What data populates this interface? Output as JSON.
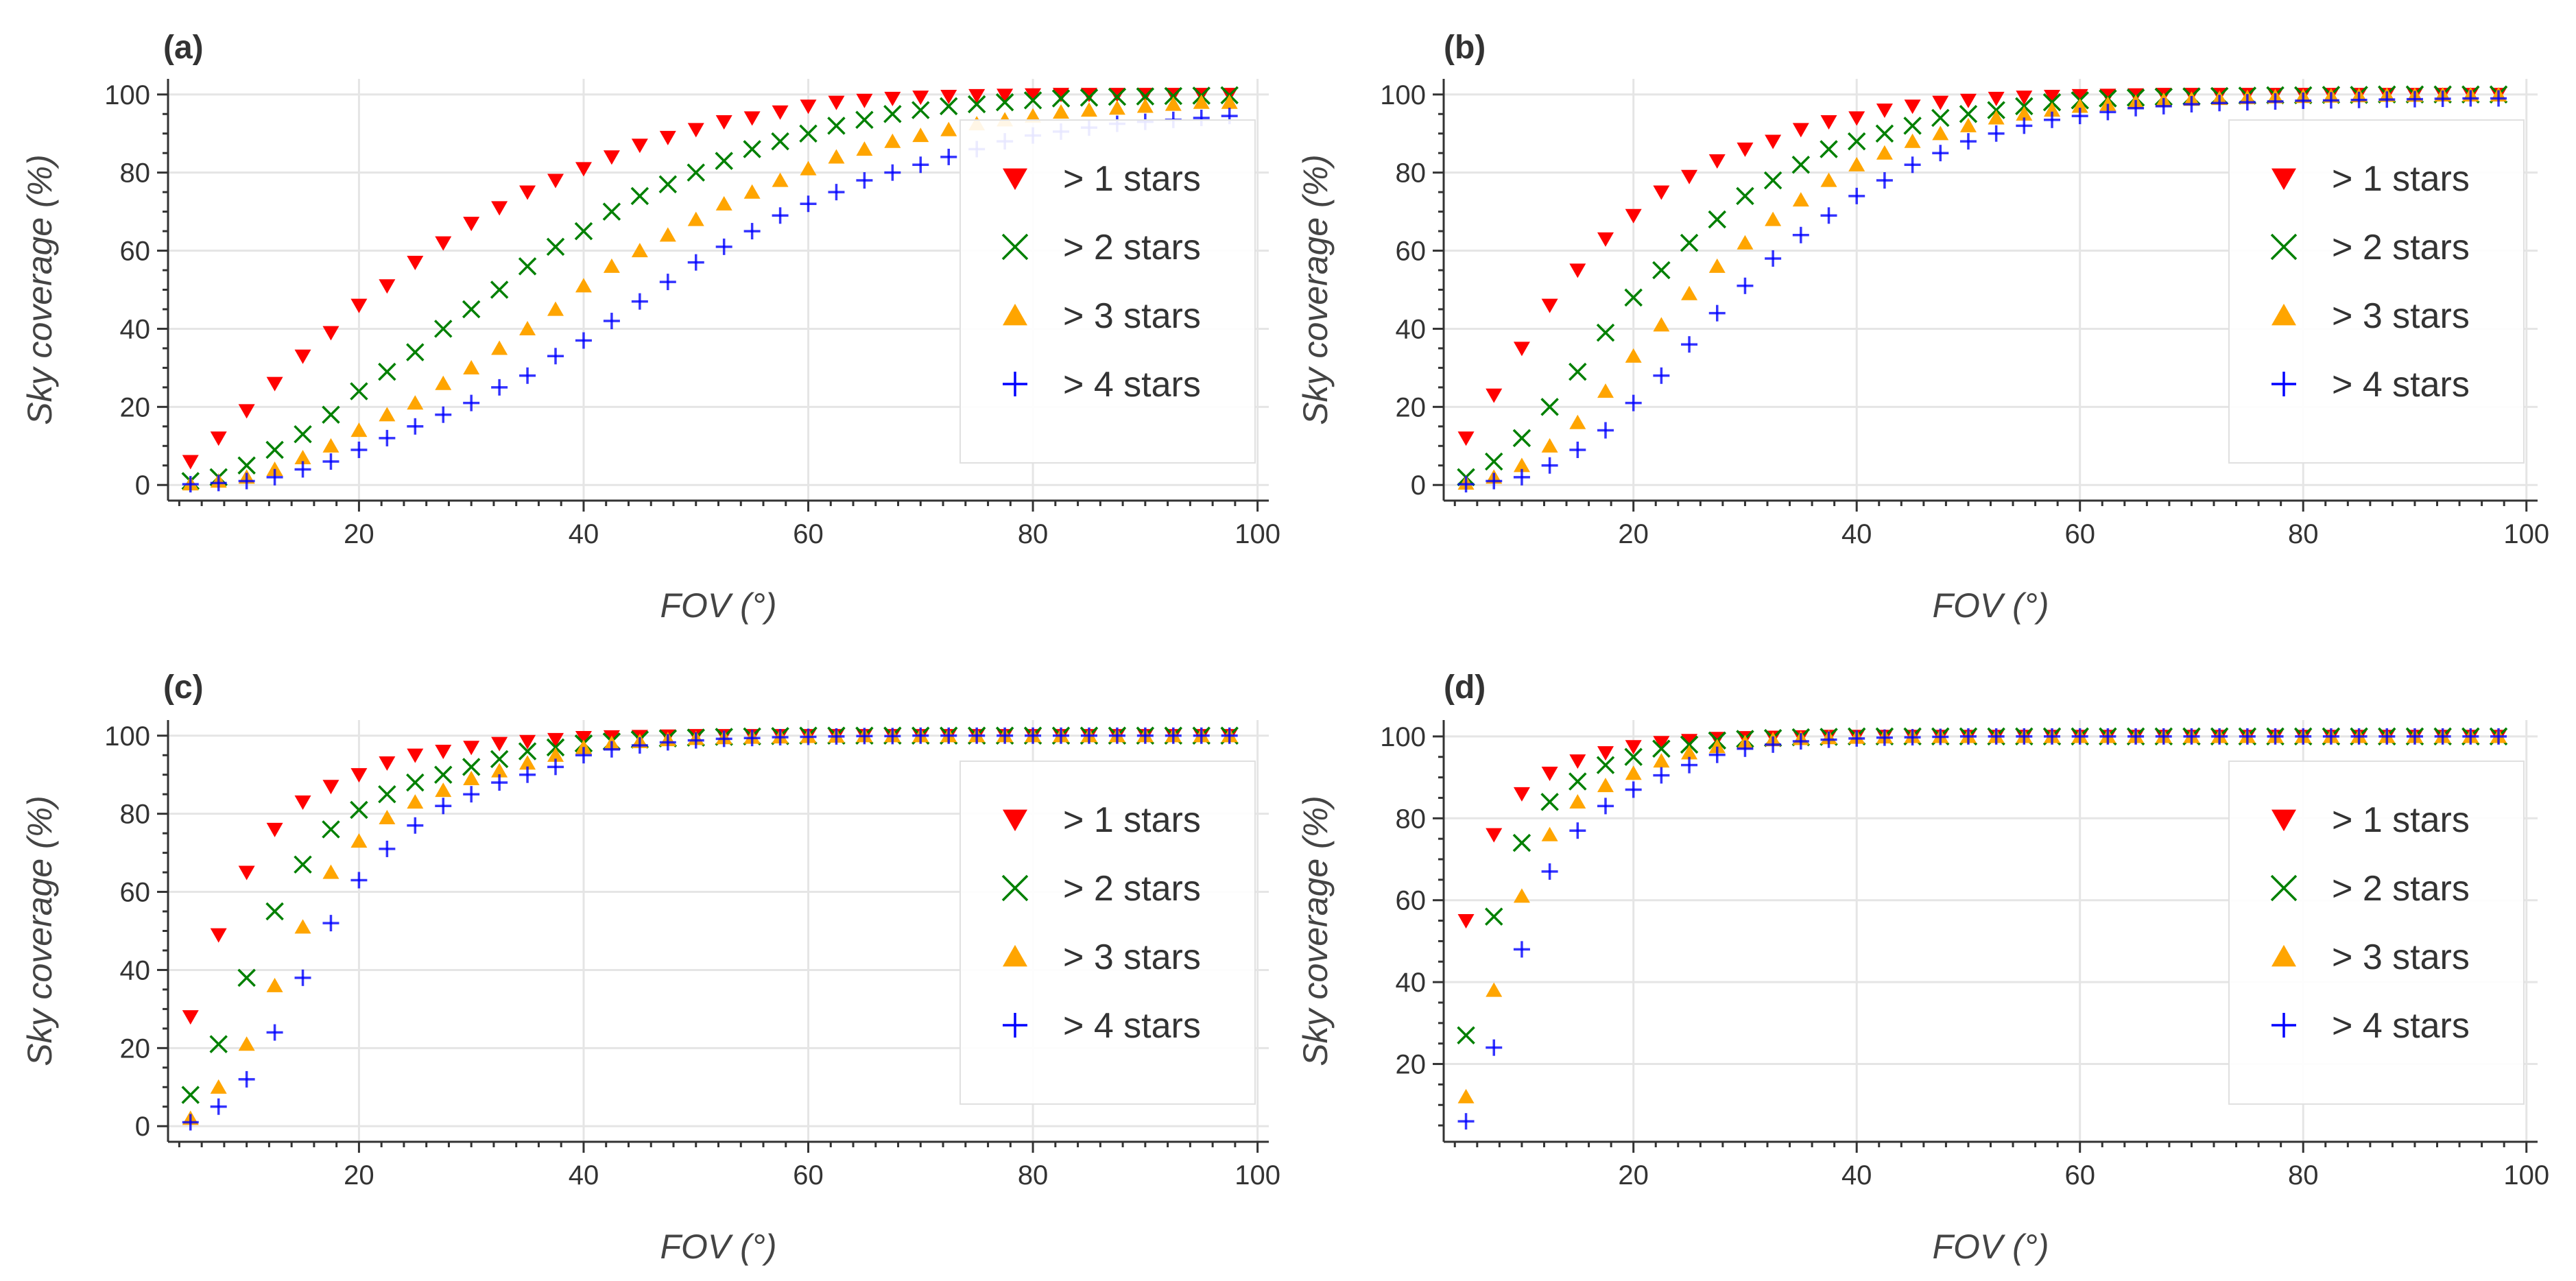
{
  "chart_data": [
    {
      "type": "scatter",
      "panel": "(a)",
      "xlabel": "FOV (°)",
      "ylabel": "Sky coverage (%)",
      "xlim": [
        3,
        101
      ],
      "ylim": [
        -4,
        104
      ],
      "xticks": [
        20,
        40,
        60,
        80,
        100
      ],
      "yticks": [
        0,
        20,
        40,
        60,
        80,
        100
      ],
      "legend_position": "right",
      "x": [
        5,
        7.5,
        10,
        12.5,
        15,
        17.5,
        20,
        22.5,
        25,
        27.5,
        30,
        32.5,
        35,
        37.5,
        40,
        42.5,
        45,
        47.5,
        50,
        52.5,
        55,
        57.5,
        60,
        62.5,
        65,
        67.5,
        70,
        72.5,
        75,
        77.5,
        80,
        82.5,
        85,
        87.5,
        90,
        92.5,
        95,
        97.5
      ],
      "series": [
        {
          "name": "> 1 stars",
          "marker": "triangle-down",
          "color": "#ff0000",
          "values": [
            6,
            12,
            19,
            26,
            33,
            39,
            46,
            51,
            57,
            62,
            67,
            71,
            75,
            78,
            81,
            84,
            87,
            89,
            91,
            93,
            94,
            95.5,
            97,
            98,
            98.5,
            99,
            99.3,
            99.5,
            99.7,
            99.8,
            99.9,
            100,
            100,
            100,
            100,
            100,
            100,
            100
          ]
        },
        {
          "name": "> 2 stars",
          "marker": "x",
          "color": "#008000",
          "values": [
            1,
            2,
            5,
            9,
            13,
            18,
            24,
            29,
            34,
            40,
            45,
            50,
            56,
            61,
            65,
            70,
            74,
            77,
            80,
            83,
            86,
            88,
            90,
            92,
            93.5,
            95,
            96,
            97,
            97.5,
            98,
            98.5,
            99,
            99.2,
            99.4,
            99.5,
            99.6,
            99.7,
            99.8
          ]
        },
        {
          "name": "> 3 stars",
          "marker": "triangle-up",
          "color": "#ffa500",
          "values": [
            0.3,
            1,
            2,
            4,
            7,
            10,
            14,
            18,
            21,
            26,
            30,
            35,
            40,
            45,
            51,
            56,
            60,
            64,
            68,
            72,
            75,
            78,
            81,
            84,
            86,
            88,
            89.5,
            91,
            92.5,
            93.5,
            94.5,
            95.5,
            96,
            96.5,
            97,
            97.5,
            98,
            98
          ]
        },
        {
          "name": "> 4 stars",
          "marker": "plus",
          "color": "#0000ff",
          "values": [
            0.2,
            0.5,
            1,
            2,
            4,
            6,
            9,
            12,
            15,
            18,
            21,
            25,
            28,
            33,
            37,
            42,
            47,
            52,
            57,
            61,
            65,
            69,
            72,
            75,
            78,
            80,
            82,
            84,
            86,
            88,
            89.5,
            90.5,
            91.5,
            92.5,
            93,
            93.5,
            94,
            94.5
          ]
        }
      ]
    },
    {
      "type": "scatter",
      "panel": "(b)",
      "xlabel": "FOV (°)",
      "ylabel": "Sky coverage (%)",
      "xlim": [
        3,
        101
      ],
      "ylim": [
        -4,
        104
      ],
      "xticks": [
        20,
        40,
        60,
        80,
        100
      ],
      "yticks": [
        0,
        20,
        40,
        60,
        80,
        100
      ],
      "legend_position": "right",
      "x": [
        5,
        7.5,
        10,
        12.5,
        15,
        17.5,
        20,
        22.5,
        25,
        27.5,
        30,
        32.5,
        35,
        37.5,
        40,
        42.5,
        45,
        47.5,
        50,
        52.5,
        55,
        57.5,
        60,
        62.5,
        65,
        67.5,
        70,
        72.5,
        75,
        77.5,
        80,
        82.5,
        85,
        87.5,
        90,
        92.5,
        95,
        97.5
      ],
      "series": [
        {
          "name": "> 1 stars",
          "marker": "triangle-down",
          "color": "#ff0000",
          "values": [
            12,
            23,
            35,
            46,
            55,
            63,
            69,
            75,
            79,
            83,
            86,
            88,
            91,
            93,
            94,
            96,
            97,
            98,
            98.5,
            99,
            99.3,
            99.5,
            99.7,
            99.8,
            99.9,
            100,
            100,
            100,
            100,
            100,
            100,
            100,
            100,
            100,
            100,
            100,
            100,
            100
          ]
        },
        {
          "name": "> 2 stars",
          "marker": "x",
          "color": "#008000",
          "values": [
            2,
            6,
            12,
            20,
            29,
            39,
            48,
            55,
            62,
            68,
            74,
            78,
            82,
            86,
            88,
            90,
            92,
            94,
            95,
            96,
            97,
            98,
            98.5,
            99,
            99.2,
            99.4,
            99.5,
            99.6,
            99.7,
            99.8,
            99.8,
            99.9,
            99.9,
            100,
            100,
            100,
            100,
            100
          ]
        },
        {
          "name": "> 3 stars",
          "marker": "triangle-up",
          "color": "#ffa500",
          "values": [
            0.5,
            2,
            5,
            10,
            16,
            24,
            33,
            41,
            49,
            56,
            62,
            68,
            73,
            78,
            82,
            85,
            88,
            90,
            92,
            94,
            95,
            96,
            97,
            97.5,
            98,
            98.5,
            98.8,
            99,
            99.2,
            99.4,
            99.5,
            99.6,
            99.7,
            99.8,
            99.8,
            99.9,
            99.9,
            99.9
          ]
        },
        {
          "name": "> 4 stars",
          "marker": "plus",
          "color": "#0000ff",
          "values": [
            0.2,
            1,
            2,
            5,
            9,
            14,
            21,
            28,
            36,
            44,
            51,
            58,
            64,
            69,
            74,
            78,
            82,
            85,
            88,
            90,
            92,
            93.5,
            94.5,
            95.5,
            96.5,
            97,
            97.5,
            97.8,
            98,
            98.2,
            98.4,
            98.5,
            98.6,
            98.7,
            98.8,
            98.9,
            99,
            99
          ]
        }
      ]
    },
    {
      "type": "scatter",
      "panel": "(c)",
      "xlabel": "FOV (°)",
      "ylabel": "Sky coverage (%)",
      "xlim": [
        3,
        101
      ],
      "ylim": [
        -4,
        104
      ],
      "xticks": [
        20,
        40,
        60,
        80,
        100
      ],
      "yticks": [
        0,
        20,
        40,
        60,
        80,
        100
      ],
      "legend_position": "right",
      "x": [
        5,
        7.5,
        10,
        12.5,
        15,
        17.5,
        20,
        22.5,
        25,
        27.5,
        30,
        32.5,
        35,
        37.5,
        40,
        42.5,
        45,
        47.5,
        50,
        52.5,
        55,
        57.5,
        60,
        62.5,
        65,
        67.5,
        70,
        72.5,
        75,
        77.5,
        80,
        82.5,
        85,
        87.5,
        90,
        92.5,
        95,
        97.5
      ],
      "series": [
        {
          "name": "> 1 stars",
          "marker": "triangle-down",
          "color": "#ff0000",
          "values": [
            28,
            49,
            65,
            76,
            83,
            87,
            90,
            93,
            95,
            96,
            97,
            98,
            98.5,
            99,
            99.5,
            99.7,
            99.8,
            99.9,
            100,
            100,
            100,
            100,
            100,
            100,
            100,
            100,
            100,
            100,
            100,
            100,
            100,
            100,
            100,
            100,
            100,
            100,
            100,
            100
          ]
        },
        {
          "name": "> 2 stars",
          "marker": "x",
          "color": "#008000",
          "values": [
            8,
            21,
            38,
            55,
            67,
            76,
            81,
            85,
            88,
            90,
            92,
            94,
            96,
            97,
            98,
            98.5,
            99,
            99.3,
            99.5,
            99.7,
            99.8,
            99.9,
            100,
            100,
            100,
            100,
            100,
            100,
            100,
            100,
            100,
            100,
            100,
            100,
            100,
            100,
            100,
            100
          ]
        },
        {
          "name": "> 3 stars",
          "marker": "triangle-up",
          "color": "#ffa500",
          "values": [
            2,
            10,
            21,
            36,
            51,
            65,
            73,
            79,
            83,
            86,
            89,
            91,
            93,
            95,
            97,
            98,
            98.5,
            99,
            99.3,
            99.5,
            99.6,
            99.7,
            99.8,
            99.9,
            100,
            100,
            100,
            100,
            100,
            100,
            100,
            100,
            100,
            100,
            100,
            100,
            100,
            100
          ]
        },
        {
          "name": "> 4 stars",
          "marker": "plus",
          "color": "#0000ff",
          "values": [
            1,
            5,
            12,
            24,
            38,
            52,
            63,
            71,
            77,
            82,
            85,
            88,
            90,
            92,
            95,
            96.5,
            97.5,
            98.3,
            98.8,
            99.2,
            99.4,
            99.6,
            99.7,
            99.8,
            99.9,
            99.9,
            100,
            100,
            100,
            100,
            100,
            100,
            100,
            100,
            100,
            100,
            100,
            100
          ]
        }
      ]
    },
    {
      "type": "scatter",
      "panel": "(d)",
      "xlabel": "FOV (°)",
      "ylabel": "Sky coverage (%)",
      "xlim": [
        3,
        101
      ],
      "ylim": [
        1,
        104
      ],
      "xticks": [
        20,
        40,
        60,
        80,
        100
      ],
      "yticks": [
        20,
        40,
        60,
        80,
        100
      ],
      "legend_position": "right",
      "x": [
        5,
        7.5,
        10,
        12.5,
        15,
        17.5,
        20,
        22.5,
        25,
        27.5,
        30,
        32.5,
        35,
        37.5,
        40,
        42.5,
        45,
        47.5,
        50,
        52.5,
        55,
        57.5,
        60,
        62.5,
        65,
        67.5,
        70,
        72.5,
        75,
        77.5,
        80,
        82.5,
        85,
        87.5,
        90,
        92.5,
        95,
        97.5
      ],
      "series": [
        {
          "name": "> 1 stars",
          "marker": "triangle-down",
          "color": "#ff0000",
          "values": [
            55,
            76,
            86,
            91,
            94,
            96,
            97.5,
            98.5,
            99,
            99.5,
            99.7,
            99.8,
            99.9,
            100,
            100,
            100,
            100,
            100,
            100,
            100,
            100,
            100,
            100,
            100,
            100,
            100,
            100,
            100,
            100,
            100,
            100,
            100,
            100,
            100,
            100,
            100,
            100,
            100
          ]
        },
        {
          "name": "> 2 stars",
          "marker": "x",
          "color": "#008000",
          "values": [
            27,
            56,
            74,
            84,
            89,
            93,
            95,
            97,
            98,
            99,
            99.4,
            99.6,
            99.8,
            99.9,
            100,
            100,
            100,
            100,
            100,
            100,
            100,
            100,
            100,
            100,
            100,
            100,
            100,
            100,
            100,
            100,
            100,
            100,
            100,
            100,
            100,
            100,
            100,
            100
          ]
        },
        {
          "name": "> 3 stars",
          "marker": "triangle-up",
          "color": "#ffa500",
          "values": [
            12,
            38,
            61,
            76,
            84,
            88,
            91,
            94,
            96,
            97.5,
            98.5,
            99.2,
            99.5,
            99.7,
            99.8,
            99.9,
            100,
            100,
            100,
            100,
            100,
            100,
            100,
            100,
            100,
            100,
            100,
            100,
            100,
            100,
            100,
            100,
            100,
            100,
            100,
            100,
            100,
            100
          ]
        },
        {
          "name": "> 4 stars",
          "marker": "plus",
          "color": "#0000ff",
          "values": [
            6,
            24,
            48,
            67,
            77,
            83,
            87,
            90.5,
            93,
            95.5,
            97,
            98,
            98.8,
            99.2,
            99.5,
            99.7,
            99.8,
            99.9,
            100,
            100,
            100,
            100,
            100,
            100,
            100,
            100,
            100,
            100,
            100,
            100,
            100,
            100,
            100,
            100,
            100,
            100,
            100,
            100
          ]
        }
      ]
    }
  ]
}
